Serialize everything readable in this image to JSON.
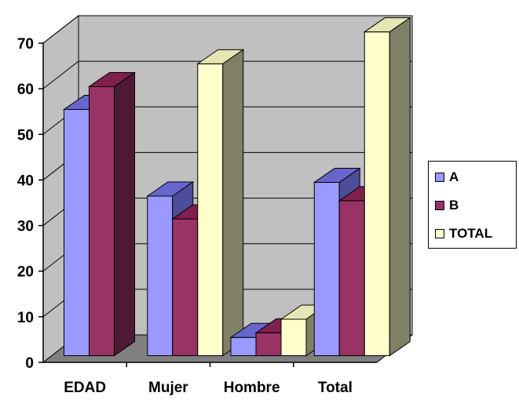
{
  "chart_data": {
    "type": "bar",
    "style": "3d-clustered-column",
    "title": "",
    "xlabel": "",
    "ylabel": "",
    "categories": [
      "EDAD",
      "Mujer",
      "Hombre",
      "Total"
    ],
    "series": [
      {
        "name": "A",
        "values": [
          54,
          35,
          4,
          38
        ],
        "color": "#9999FF",
        "top_color": "#6666CC",
        "side_color": "#4D4D99"
      },
      {
        "name": "B",
        "values": [
          59,
          30,
          5,
          34
        ],
        "color": "#993366",
        "top_color": "#80204D",
        "side_color": "#4D1A33"
      },
      {
        "name": "TOTAL",
        "values": [
          null,
          64,
          8,
          71
        ],
        "color": "#FFFFCC",
        "top_color": "#E6E6B3",
        "side_color": "#808066"
      }
    ],
    "ylim": [
      0,
      70
    ],
    "yticks": [
      0,
      10,
      20,
      30,
      40,
      50,
      60,
      70
    ],
    "grid": true,
    "legend": "right",
    "wall_color": "#C0C0C0",
    "floor_color": "#808080"
  }
}
